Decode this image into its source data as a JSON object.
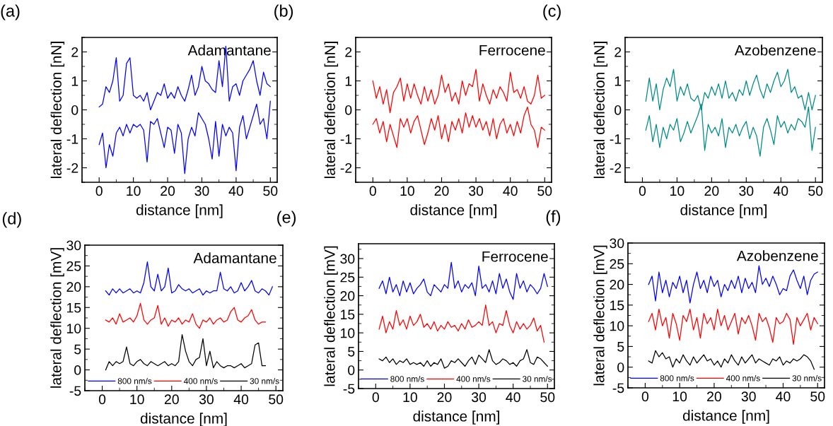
{
  "chart_data": [
    {
      "type": "line",
      "xlabel": "distance [nm]",
      "ylabel": "lateral deflection [nN]",
      "annotations": [
        "(a)",
        "Adamantane"
      ],
      "xlim": [
        -5,
        52
      ],
      "ylim": [
        -2.5,
        2.5
      ],
      "xticks": [
        0,
        10,
        20,
        30,
        40,
        50
      ],
      "yticks": [
        -2,
        -1,
        0,
        1,
        2
      ],
      "x": [
        0,
        1,
        2,
        3,
        4,
        5,
        6,
        7,
        8,
        9,
        10,
        11,
        12,
        13,
        14,
        15,
        16,
        17,
        18,
        19,
        20,
        21,
        22,
        23,
        24,
        25,
        26,
        27,
        28,
        29,
        30,
        31,
        32,
        33,
        34,
        35,
        36,
        37,
        38,
        39,
        40,
        41,
        42,
        43,
        44,
        45,
        46,
        47,
        48,
        49,
        50
      ],
      "series": [
        {
          "color": "#0000ff",
          "values": [
            0.1,
            0.2,
            0.8,
            0.6,
            1.0,
            1.8,
            0.3,
            0.5,
            1.6,
            1.8,
            0.5,
            0.4,
            0.5,
            0.3,
            0.6,
            0.0,
            0.3,
            0.6,
            0.5,
            0.9,
            0.4,
            0.6,
            0.4,
            0.8,
            0.5,
            0.3,
            0.7,
            1.2,
            0.5,
            0.8,
            1.5,
            1.0,
            0.9,
            0.7,
            0.6,
            1.7,
            0.8,
            2.2,
            0.3,
            0.8,
            0.9,
            0.5,
            1.0,
            1.2,
            1.4,
            1.7,
            1.0,
            0.5,
            1.3,
            0.9,
            0.8
          ]
        },
        {
          "color": "#0000ff",
          "values": [
            -1.2,
            -0.8,
            -2.0,
            -1.2,
            -1.6,
            -0.8,
            -0.6,
            -0.9,
            -0.5,
            -0.8,
            -0.5,
            -0.6,
            -0.5,
            -0.7,
            -1.8,
            -0.4,
            -0.5,
            -0.3,
            -0.8,
            -1.3,
            -0.6,
            -0.7,
            -1.5,
            -0.5,
            -0.8,
            -2.2,
            -1.0,
            -0.6,
            -0.9,
            -0.1,
            -0.3,
            -0.5,
            -1.0,
            -1.7,
            -0.4,
            -1.6,
            -0.5,
            -0.9,
            -0.6,
            -0.8,
            -2.1,
            -0.6,
            -0.2,
            -1.0,
            -0.6,
            -0.2,
            0.2,
            -0.5,
            -0.3,
            -1.0,
            0.3
          ]
        }
      ]
    },
    {
      "type": "line",
      "xlabel": "distance [nm]",
      "ylabel": "lateral deflection [nN]",
      "annotations": [
        "(b)",
        "Ferrocene"
      ],
      "xlim": [
        -5,
        52
      ],
      "ylim": [
        -2.5,
        2.5
      ],
      "xticks": [
        0,
        10,
        20,
        30,
        40,
        50
      ],
      "yticks": [
        -2,
        -1,
        0,
        1,
        2
      ],
      "x": [
        0,
        1,
        2,
        3,
        4,
        5,
        6,
        7,
        8,
        9,
        10,
        11,
        12,
        13,
        14,
        15,
        16,
        17,
        18,
        19,
        20,
        21,
        22,
        23,
        24,
        25,
        26,
        27,
        28,
        29,
        30,
        31,
        32,
        33,
        34,
        35,
        36,
        37,
        38,
        39,
        40,
        41,
        42,
        43,
        44,
        45,
        46,
        47,
        48,
        49,
        50
      ],
      "series": [
        {
          "color": "#ff0000",
          "values": [
            1.0,
            0.4,
            0.8,
            0.2,
            0.7,
            -0.1,
            0.6,
            0.8,
            1.1,
            0.3,
            0.9,
            0.4,
            0.9,
            0.5,
            0.2,
            0.8,
            0.3,
            0.7,
            0.2,
            0.5,
            1.2,
            0.6,
            0.9,
            0.3,
            0.6,
            0.2,
            1.0,
            0.5,
            0.9,
            0.8,
            1.4,
            0.3,
            0.9,
            0.5,
            0.2,
            0.7,
            0.4,
            0.8,
            0.6,
            0.3,
            1.3,
            0.6,
            0.7,
            0.4,
            0.8,
            0.3,
            0.2,
            0.5,
            1.2,
            0.4,
            0.5
          ]
        },
        {
          "color": "#ff0000",
          "values": [
            -0.5,
            -0.3,
            -0.8,
            -0.4,
            -1.1,
            -0.5,
            -0.9,
            -1.3,
            -0.3,
            -0.6,
            -0.3,
            -0.8,
            -0.4,
            -0.2,
            -0.7,
            -1.2,
            -0.8,
            -0.3,
            -0.7,
            -0.2,
            -1.0,
            -0.5,
            -1.1,
            -0.4,
            -0.7,
            -0.3,
            -0.8,
            -0.1,
            -0.6,
            -0.2,
            -0.6,
            -0.3,
            -0.7,
            -0.4,
            -0.9,
            -0.3,
            -1.0,
            -0.5,
            -0.3,
            -0.8,
            -0.5,
            -0.9,
            -0.4,
            -0.8,
            -0.2,
            0.1,
            -0.5,
            -0.7,
            -1.3,
            -0.6,
            -0.7
          ]
        }
      ]
    },
    {
      "type": "line",
      "xlabel": "distance [nm]",
      "ylabel": "lateral deflection [nN]",
      "annotations": [
        "(c)",
        "Azobenzene"
      ],
      "xlim": [
        -5,
        52
      ],
      "ylim": [
        -2.5,
        2.5
      ],
      "xticks": [
        0,
        10,
        20,
        30,
        40,
        50
      ],
      "yticks": [
        -2,
        -1,
        0,
        1,
        2
      ],
      "x": [
        1,
        2,
        3,
        4,
        5,
        6,
        7,
        8,
        9,
        10,
        11,
        12,
        13,
        14,
        15,
        16,
        17,
        18,
        19,
        20,
        21,
        22,
        23,
        24,
        25,
        26,
        27,
        28,
        29,
        30,
        31,
        32,
        33,
        34,
        35,
        36,
        37,
        38,
        39,
        40,
        41,
        42,
        43,
        44,
        45,
        46,
        47,
        48,
        49,
        50
      ],
      "series": [
        {
          "color": "#008b8b",
          "values": [
            0.3,
            1.1,
            0.3,
            0.9,
            0.0,
            0.7,
            1.1,
            0.8,
            1.4,
            0.3,
            0.8,
            0.5,
            0.9,
            0.4,
            0.3,
            0.5,
            0.0,
            0.6,
            0.4,
            0.8,
            0.5,
            0.9,
            0.4,
            1.0,
            0.4,
            0.6,
            0.3,
            0.7,
            0.5,
            1.0,
            0.5,
            0.9,
            1.2,
            0.7,
            0.4,
            0.9,
            0.6,
            1.0,
            1.3,
            0.8,
            1.0,
            1.4,
            0.6,
            0.8,
            0.4,
            0.5,
            0.0,
            0.6,
            0.0,
            0.5
          ]
        },
        {
          "color": "#008b8b",
          "values": [
            -0.7,
            -0.2,
            -1.1,
            -0.5,
            -1.3,
            -0.6,
            -1.0,
            -0.5,
            -0.7,
            -0.3,
            -1.1,
            -0.8,
            -0.4,
            -0.8,
            -0.5,
            -0.2,
            0.2,
            -1.4,
            -0.5,
            -0.8,
            -0.6,
            -0.9,
            -0.3,
            -1.3,
            -0.6,
            -0.8,
            -0.5,
            -0.9,
            -0.6,
            -0.4,
            -1.0,
            -0.6,
            -0.9,
            -1.6,
            -0.6,
            -0.3,
            -0.7,
            -1.2,
            -0.2,
            -0.6,
            -0.4,
            -0.8,
            -0.5,
            -0.7,
            -0.3,
            -0.4,
            -0.6,
            0.1,
            -1.4,
            -0.6
          ]
        }
      ]
    },
    {
      "type": "line",
      "xlabel": "distance [nm]",
      "ylabel": "lateral deflection [mV]",
      "annotations": [
        "(d)",
        "Adamantane"
      ],
      "xlim": [
        -5,
        52
      ],
      "ylim": [
        -5,
        30
      ],
      "xticks": [
        0,
        10,
        20,
        30,
        40,
        50
      ],
      "yticks": [
        -5,
        0,
        5,
        10,
        15,
        20,
        25,
        30
      ],
      "legend": "bottom",
      "series": [
        {
          "name": "800 nm/s",
          "color": "#0000ff",
          "x": [
            1,
            2,
            3,
            4,
            5,
            6,
            7,
            8,
            9,
            10,
            11,
            12,
            13,
            14,
            15,
            16,
            17,
            18,
            19,
            20,
            21,
            22,
            23,
            24,
            25,
            26,
            27,
            28,
            29,
            30,
            31,
            32,
            33,
            34,
            35,
            36,
            37,
            38,
            39,
            40,
            41,
            42,
            43,
            44,
            45,
            46,
            47,
            48,
            49
          ],
          "values": [
            19,
            18,
            19.5,
            18.5,
            19.5,
            18.5,
            19,
            19.5,
            18.5,
            19,
            18.5,
            21,
            26,
            20,
            19,
            23,
            19,
            20,
            24.5,
            18.5,
            19,
            20.5,
            19.5,
            19,
            19.5,
            18.5,
            19,
            19.5,
            18,
            19,
            18.5,
            19,
            19,
            23.5,
            19.5,
            19,
            20,
            18.5,
            19,
            21,
            19,
            20,
            21.5,
            19,
            18.5,
            19.5,
            19,
            18,
            20
          ]
        },
        {
          "name": "400 nm/s",
          "color": "#ff0000",
          "x": [
            1,
            2,
            3,
            4,
            5,
            6,
            7,
            8,
            9,
            10,
            11,
            12,
            13,
            14,
            15,
            16,
            17,
            18,
            19,
            20,
            21,
            22,
            23,
            24,
            25,
            26,
            27,
            28,
            29,
            30,
            31,
            32,
            33,
            34,
            35,
            36,
            37,
            38,
            39,
            40,
            41,
            42,
            43,
            44,
            45,
            46,
            47
          ],
          "values": [
            12,
            11.5,
            12.5,
            11,
            13.5,
            11.5,
            12,
            12.5,
            11.5,
            13,
            16,
            12,
            11,
            12,
            12.5,
            15.5,
            11,
            12.5,
            10.5,
            12,
            11.5,
            12.5,
            11,
            12,
            11.5,
            13.5,
            11,
            10,
            12,
            11.5,
            12.5,
            11,
            12,
            12.5,
            11.5,
            12,
            14,
            15,
            12,
            11.5,
            12.5,
            13,
            14.5,
            12,
            11,
            11.5,
            11.5
          ]
        },
        {
          "name": "30 nm/s",
          "color": "#000000",
          "x": [
            1,
            2,
            3,
            4,
            5,
            6,
            7,
            8,
            9,
            10,
            11,
            12,
            13,
            14,
            15,
            16,
            17,
            18,
            19,
            20,
            21,
            22,
            23,
            24,
            25,
            26,
            27,
            28,
            29,
            30,
            31,
            32,
            33,
            34,
            35,
            36,
            37,
            38,
            39,
            40,
            41,
            42,
            43,
            44,
            45,
            46,
            47
          ],
          "values": [
            0,
            2,
            1,
            2,
            1.5,
            2,
            5.5,
            1.5,
            1,
            2,
            2.5,
            1.5,
            1,
            2,
            1.5,
            1,
            1.5,
            2,
            1,
            1.5,
            1,
            2,
            8.5,
            4.5,
            2,
            1,
            2.5,
            3,
            7.5,
            1,
            4.5,
            0.5,
            2,
            1,
            0.5,
            1,
            1,
            0.5,
            1,
            1.5,
            0.5,
            1,
            1.5,
            6,
            6.5,
            1,
            1
          ]
        }
      ]
    },
    {
      "type": "line",
      "xlabel": "distance [nm]",
      "ylabel": "lateral deflection [mV]",
      "annotations": [
        "(e)",
        "Ferrocene"
      ],
      "xlim": [
        -5,
        52
      ],
      "ylim": [
        -5,
        34
      ],
      "xticks": [
        0,
        10,
        20,
        30,
        40,
        50
      ],
      "yticks": [
        -5,
        0,
        5,
        10,
        15,
        20,
        25,
        30
      ],
      "legend": "bottom",
      "series": [
        {
          "name": "800 nm/s",
          "color": "#0000ff",
          "x": [
            1,
            2,
            3,
            4,
            5,
            6,
            7,
            8,
            9,
            10,
            11,
            12,
            13,
            14,
            15,
            16,
            17,
            18,
            19,
            20,
            21,
            22,
            23,
            24,
            25,
            26,
            27,
            28,
            29,
            30,
            31,
            32,
            33,
            34,
            35,
            36,
            37,
            38,
            39,
            40,
            41,
            42,
            43,
            44,
            45,
            46,
            47,
            48,
            49,
            50
          ],
          "values": [
            22,
            24,
            20.5,
            25,
            21,
            23,
            20,
            24,
            21,
            23.5,
            20.5,
            22,
            23,
            24.5,
            21,
            20,
            23,
            22,
            21,
            23,
            22,
            29,
            22,
            24,
            21,
            23,
            22,
            23.5,
            20,
            28,
            22,
            23,
            21,
            24,
            20.5,
            26,
            22,
            24.5,
            21,
            19,
            26,
            22,
            24,
            21,
            23,
            22,
            20.5,
            22,
            26,
            22.5
          ]
        },
        {
          "name": "400 nm/s",
          "color": "#ff0000",
          "x": [
            1,
            2,
            3,
            4,
            5,
            6,
            7,
            8,
            9,
            10,
            11,
            12,
            13,
            14,
            15,
            16,
            17,
            18,
            19,
            20,
            21,
            22,
            23,
            24,
            25,
            26,
            27,
            28,
            29,
            30,
            31,
            32,
            33,
            34,
            35,
            36,
            37,
            38,
            39,
            40,
            41,
            42,
            43,
            44,
            45,
            46,
            47,
            48,
            49
          ],
          "values": [
            11,
            14.5,
            10,
            13,
            11,
            16,
            12,
            13.5,
            11,
            14.5,
            12,
            13,
            15,
            11.5,
            12.5,
            11,
            13,
            10.5,
            12,
            11,
            13,
            11.5,
            12,
            10.5,
            12.5,
            11,
            13.5,
            11.5,
            12,
            13,
            12,
            17.5,
            12,
            13,
            10,
            12.5,
            12,
            16,
            12,
            10,
            13,
            11,
            12.5,
            11,
            12,
            14,
            10.5,
            12,
            7.5
          ]
        },
        {
          "name": "30 nm/s",
          "color": "#000000",
          "x": [
            1,
            2,
            3,
            4,
            5,
            6,
            7,
            8,
            9,
            10,
            11,
            12,
            13,
            14,
            15,
            16,
            17,
            18,
            19,
            20,
            21,
            22,
            23,
            24,
            25,
            26,
            27,
            28,
            29,
            30,
            31,
            32,
            33,
            34,
            35,
            36,
            37,
            38,
            39,
            40,
            41,
            42,
            43,
            44,
            45,
            46,
            47,
            48,
            49,
            50
          ],
          "values": [
            3,
            2.5,
            3.5,
            2,
            3,
            1.5,
            2.5,
            2,
            3,
            1.5,
            2,
            1.5,
            2,
            1,
            2.5,
            1,
            2,
            1.5,
            3,
            0.5,
            1,
            2.5,
            2,
            3,
            2,
            1,
            2.5,
            3.5,
            1.5,
            4,
            3,
            2,
            5.5,
            2.5,
            1.5,
            2,
            3,
            2.5,
            1.5,
            2,
            1,
            2.5,
            3,
            5.5,
            2,
            1.5,
            3.5,
            3,
            2,
            1
          ]
        }
      ]
    },
    {
      "type": "line",
      "xlabel": "distance [nm]",
      "ylabel": "lateral deflection [mV]",
      "annotations": [
        "(f)",
        "Azobenzene"
      ],
      "xlim": [
        -5,
        52
      ],
      "ylim": [
        -5,
        30
      ],
      "xticks": [
        0,
        10,
        20,
        30,
        40,
        50
      ],
      "yticks": [
        -5,
        0,
        5,
        10,
        15,
        20,
        25,
        30
      ],
      "legend": "bottom",
      "series": [
        {
          "name": "800 nm/s",
          "color": "#0000ff",
          "x": [
            1,
            2,
            3,
            4,
            5,
            6,
            7,
            8,
            9,
            10,
            11,
            12,
            13,
            14,
            15,
            16,
            17,
            18,
            19,
            20,
            21,
            22,
            23,
            24,
            25,
            26,
            27,
            28,
            29,
            30,
            31,
            32,
            33,
            34,
            35,
            36,
            37,
            38,
            39,
            40,
            41,
            42,
            43,
            44,
            45,
            46,
            47,
            48,
            49,
            50
          ],
          "values": [
            20,
            22,
            16,
            23,
            18,
            21,
            17,
            20.5,
            19,
            22,
            18,
            21,
            15.5,
            20,
            23,
            19,
            21,
            18,
            22,
            19.5,
            21,
            17,
            20,
            18.5,
            21,
            19,
            22,
            18,
            21.5,
            19,
            20.5,
            18,
            24.5,
            20,
            21.5,
            19.5,
            22,
            20,
            17.5,
            19,
            18.5,
            22,
            23.5,
            21,
            19,
            22,
            17.5,
            21,
            22.5,
            23
          ]
        },
        {
          "name": "400 nm/s",
          "color": "#ff0000",
          "x": [
            1,
            2,
            3,
            4,
            5,
            6,
            7,
            8,
            9,
            10,
            11,
            12,
            13,
            14,
            15,
            16,
            17,
            18,
            19,
            20,
            21,
            22,
            23,
            24,
            25,
            26,
            27,
            28,
            29,
            30,
            31,
            32,
            33,
            34,
            35,
            36,
            37,
            38,
            39,
            40,
            41,
            42,
            43,
            44,
            45,
            46,
            47,
            48,
            49,
            50
          ],
          "values": [
            11,
            13,
            9,
            14,
            10,
            12,
            7,
            13,
            10.5,
            6.5,
            12.5,
            11,
            14,
            9,
            12,
            7,
            13,
            10.5,
            12,
            9,
            14,
            10,
            12.5,
            9,
            11,
            13,
            8,
            12,
            10.5,
            12.5,
            10,
            6.5,
            13,
            11,
            12,
            9.5,
            6,
            12,
            10.5,
            11,
            13,
            11.5,
            5.5,
            12,
            10,
            11.5,
            13,
            9,
            12,
            10.5
          ]
        },
        {
          "name": "30 nm/s",
          "color": "#000000",
          "x": [
            1,
            2,
            3,
            4,
            5,
            6,
            7,
            8,
            9,
            10,
            11,
            12,
            13,
            14,
            15,
            16,
            17,
            18,
            19,
            20,
            21,
            22,
            23,
            24,
            25,
            26,
            27,
            28,
            29,
            30,
            31,
            32,
            33,
            34,
            35,
            36,
            37,
            38,
            39,
            40,
            41,
            42,
            43,
            44,
            45,
            46,
            47,
            48,
            49
          ],
          "values": [
            1.5,
            1,
            4,
            2.5,
            3.5,
            2,
            2.5,
            0,
            2,
            1,
            3,
            1.5,
            0.5,
            2.5,
            1,
            2,
            3,
            1.5,
            2,
            0.5,
            1.5,
            0,
            2,
            1,
            3,
            1.5,
            0.5,
            2.5,
            1,
            2,
            3,
            1,
            2,
            1.5,
            1,
            0.5,
            2,
            1.5,
            2.5,
            0.5,
            1.5,
            1,
            2,
            1.5,
            2,
            3,
            2.5,
            1.5,
            -0.5
          ]
        }
      ]
    }
  ]
}
